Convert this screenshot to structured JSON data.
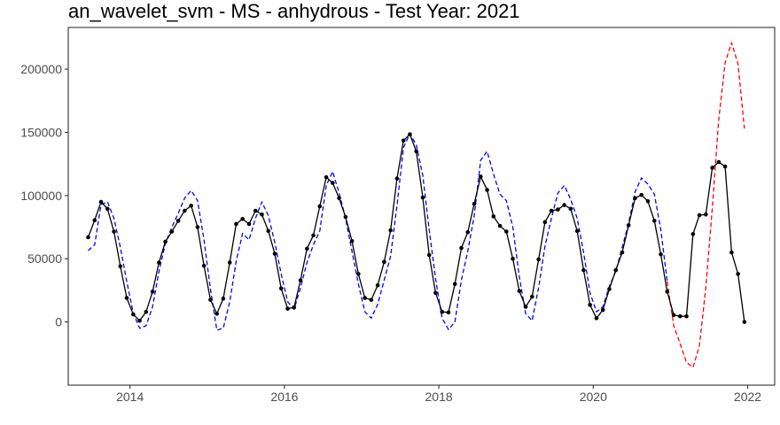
{
  "chart_data": {
    "type": "line",
    "title": "an_wavelet_svm - MS - anhydrous - Test Year: 2021",
    "xlabel": "",
    "ylabel": "",
    "xlim": [
      2013.2,
      2022.35
    ],
    "ylim": [
      -50000,
      233000
    ],
    "x_ticks": [
      2014,
      2016,
      2018,
      2020,
      2022
    ],
    "x_tick_labels": [
      "2014",
      "2016",
      "2018",
      "2020",
      "2022"
    ],
    "y_ticks": [
      0,
      50000,
      100000,
      150000,
      200000
    ],
    "y_tick_labels": [
      "0",
      "50000",
      "100000",
      "150000",
      "200000"
    ],
    "grid": false,
    "legend": "none",
    "series": [
      {
        "style": "solid",
        "color": "#000000",
        "markers": true,
        "x": [
          2013.458,
          2013.542,
          2013.625,
          2013.708,
          2013.792,
          2013.875,
          2013.958,
          2014.042,
          2014.125,
          2014.208,
          2014.292,
          2014.375,
          2014.458,
          2014.542,
          2014.625,
          2014.708,
          2014.792,
          2014.875,
          2014.958,
          2015.042,
          2015.125,
          2015.208,
          2015.292,
          2015.375,
          2015.458,
          2015.542,
          2015.625,
          2015.708,
          2015.792,
          2015.875,
          2015.958,
          2016.042,
          2016.125,
          2016.208,
          2016.292,
          2016.375,
          2016.458,
          2016.542,
          2016.625,
          2016.708,
          2016.792,
          2016.875,
          2016.958,
          2017.042,
          2017.125,
          2017.208,
          2017.292,
          2017.375,
          2017.458,
          2017.542,
          2017.625,
          2017.708,
          2017.792,
          2017.875,
          2017.958,
          2018.042,
          2018.125,
          2018.208,
          2018.292,
          2018.375,
          2018.458,
          2018.542,
          2018.625,
          2018.708,
          2018.792,
          2018.875,
          2018.958,
          2019.042,
          2019.125,
          2019.208,
          2019.292,
          2019.375,
          2019.458,
          2019.542,
          2019.625,
          2019.708,
          2019.792,
          2019.875,
          2019.958,
          2020.042,
          2020.125,
          2020.208,
          2020.292,
          2020.375,
          2020.458,
          2020.542,
          2020.625,
          2020.708,
          2020.792,
          2020.875,
          2020.958,
          2021.042,
          2021.125,
          2021.208,
          2021.292,
          2021.375,
          2021.458,
          2021.542,
          2021.625,
          2021.708,
          2021.792,
          2021.875,
          2021.958
        ],
        "y": [
          67000,
          80500,
          95000,
          89500,
          71500,
          44000,
          19000,
          6000,
          1000,
          8000,
          24000,
          47000,
          63500,
          71500,
          80000,
          88000,
          92000,
          75000,
          44500,
          17500,
          6500,
          18500,
          47000,
          77500,
          81500,
          77500,
          88000,
          85000,
          72000,
          54000,
          26500,
          10500,
          11500,
          33000,
          58000,
          68500,
          91500,
          114500,
          110000,
          98000,
          83000,
          64000,
          38000,
          19000,
          17500,
          29000,
          47500,
          72500,
          113500,
          143500,
          148500,
          135000,
          98500,
          53000,
          23000,
          8000,
          7500,
          30000,
          58500,
          71000,
          93500,
          115000,
          104500,
          83500,
          76000,
          71500,
          50000,
          24500,
          12000,
          20000,
          49500,
          79000,
          88000,
          89000,
          92500,
          89500,
          72000,
          41000,
          13500,
          3000,
          9500,
          26000,
          41000,
          55000,
          76500,
          98000,
          100500,
          95500,
          80000,
          53500,
          24000,
          5500,
          4500,
          4500,
          69500,
          84500,
          85000,
          122000,
          126500,
          123000,
          55000,
          38000,
          0
        ]
      },
      {
        "style": "dashed",
        "color": "#0000ff",
        "markers": false,
        "x": [
          2013.458,
          2013.542,
          2013.625,
          2013.708,
          2013.792,
          2013.875,
          2013.958,
          2014.042,
          2014.125,
          2014.208,
          2014.292,
          2014.375,
          2014.458,
          2014.542,
          2014.625,
          2014.708,
          2014.792,
          2014.875,
          2014.958,
          2015.042,
          2015.125,
          2015.208,
          2015.292,
          2015.375,
          2015.458,
          2015.542,
          2015.625,
          2015.708,
          2015.792,
          2015.875,
          2015.958,
          2016.042,
          2016.125,
          2016.208,
          2016.292,
          2016.375,
          2016.458,
          2016.542,
          2016.625,
          2016.708,
          2016.792,
          2016.875,
          2016.958,
          2017.042,
          2017.125,
          2017.208,
          2017.292,
          2017.375,
          2017.458,
          2017.542,
          2017.625,
          2017.708,
          2017.792,
          2017.875,
          2017.958,
          2018.042,
          2018.125,
          2018.208,
          2018.292,
          2018.375,
          2018.458,
          2018.542,
          2018.625,
          2018.708,
          2018.792,
          2018.875,
          2018.958,
          2019.042,
          2019.125,
          2019.208,
          2019.292,
          2019.375,
          2019.458,
          2019.542,
          2019.625,
          2019.708,
          2019.792,
          2019.875,
          2019.958,
          2020.042,
          2020.125,
          2020.208,
          2020.292,
          2020.375,
          2020.458,
          2020.542,
          2020.625,
          2020.708,
          2020.792,
          2020.875,
          2020.958
        ],
        "y": [
          56500,
          61000,
          93000,
          95000,
          82000,
          59000,
          32000,
          7000,
          -5000,
          -3000,
          12000,
          40000,
          62000,
          75000,
          86000,
          98000,
          104000,
          96000,
          65000,
          26000,
          -6500,
          -5000,
          16000,
          48000,
          70000,
          65000,
          82000,
          95000,
          84000,
          63000,
          38000,
          16000,
          10000,
          27000,
          47000,
          61000,
          72000,
          108000,
          119000,
          102000,
          82000,
          56000,
          30000,
          8000,
          3000,
          14000,
          33000,
          52000,
          92000,
          138000,
          149000,
          140000,
          116000,
          73000,
          34000,
          3000,
          -6000,
          0,
          33000,
          56000,
          84000,
          128000,
          135000,
          117000,
          101000,
          96000,
          75000,
          36000,
          6500,
          1000,
          27000,
          60000,
          82000,
          102000,
          108000,
          97000,
          82000,
          55000,
          23000,
          8000,
          12000,
          28000,
          40000,
          59000,
          78000,
          103000,
          114000,
          109000,
          101000,
          73000,
          32000
        ]
      },
      {
        "style": "dashed",
        "color": "#ff0000",
        "markers": false,
        "x": [
          2020.958,
          2021.042,
          2021.125,
          2021.208,
          2021.292,
          2021.375,
          2021.458,
          2021.542,
          2021.625,
          2021.708,
          2021.792,
          2021.875,
          2021.958
        ],
        "y": [
          32000,
          -3000,
          -17000,
          -32000,
          -36000,
          -19000,
          27000,
          90000,
          160000,
          205000,
          221000,
          204000,
          153000
        ]
      }
    ]
  }
}
